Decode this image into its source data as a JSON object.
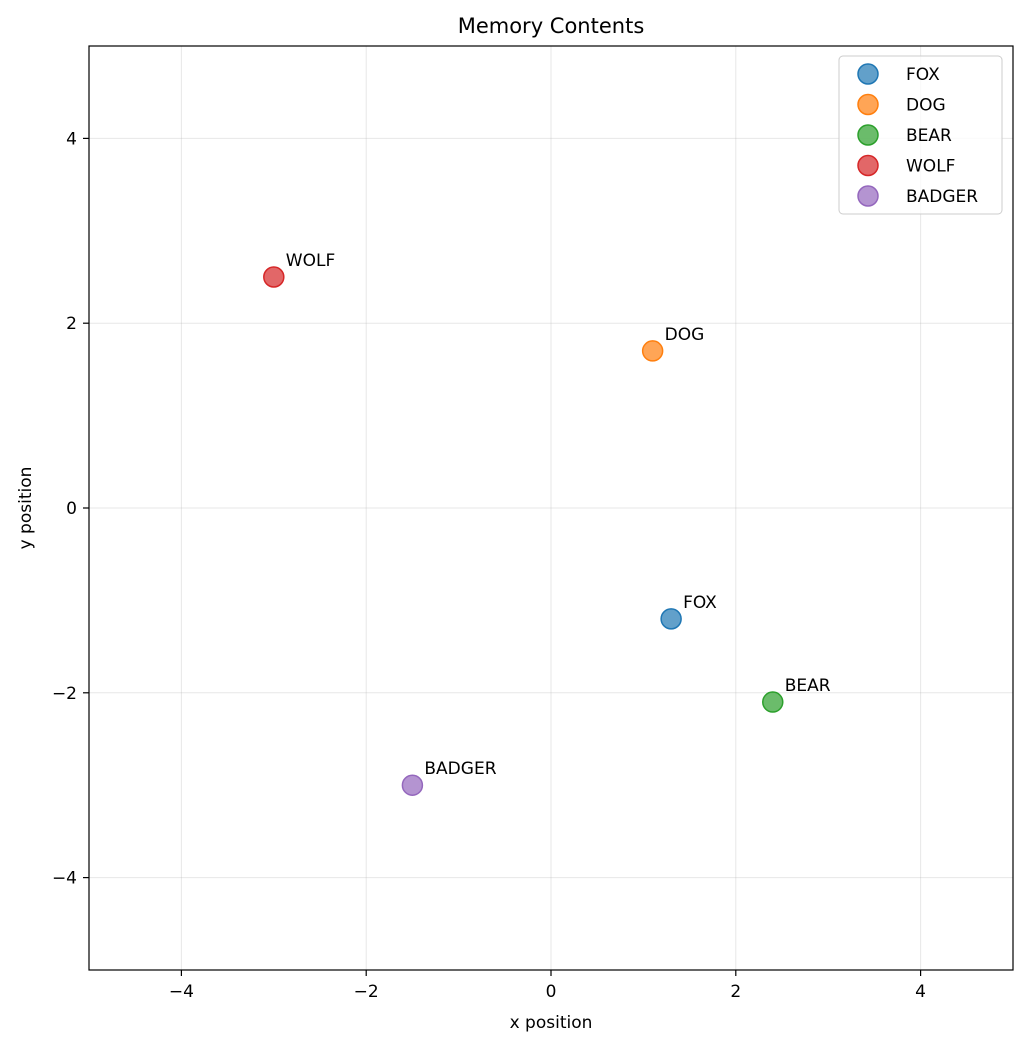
{
  "chart_data": {
    "type": "scatter",
    "title": "Memory Contents",
    "xlabel": "x position",
    "ylabel": "y position",
    "xlim": [
      -5,
      5
    ],
    "ylim": [
      -5,
      5
    ],
    "xticks": [
      -4,
      -2,
      0,
      2,
      4
    ],
    "yticks": [
      -4,
      -2,
      0,
      2,
      4
    ],
    "xtick_labels": [
      "−4",
      "−2",
      "0",
      "2",
      "4"
    ],
    "ytick_labels": [
      "−4",
      "−2",
      "0",
      "2",
      "4"
    ],
    "grid": true,
    "legend_position": "top-right",
    "series": [
      {
        "name": "FOX",
        "color": "#1f77b4",
        "x": 1.3,
        "y": -1.2,
        "label": "FOX"
      },
      {
        "name": "DOG",
        "color": "#ff7f0e",
        "x": 1.1,
        "y": 1.7,
        "label": "DOG"
      },
      {
        "name": "BEAR",
        "color": "#2ca02c",
        "x": 2.4,
        "y": -2.1,
        "label": "BEAR"
      },
      {
        "name": "WOLF",
        "color": "#d62728",
        "x": -3.0,
        "y": 2.5,
        "label": "WOLF"
      },
      {
        "name": "BADGER",
        "color": "#9467bd",
        "x": -1.5,
        "y": -3.0,
        "label": "BADGER"
      }
    ]
  }
}
